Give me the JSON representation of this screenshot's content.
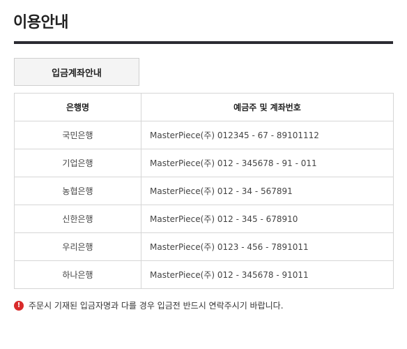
{
  "page": {
    "title": "이용안내"
  },
  "section": {
    "tab_label": "입금계좌안내"
  },
  "table": {
    "headers": [
      "은행명",
      "예금주 및 계좌번호"
    ],
    "rows": [
      {
        "bank": "국민은행",
        "account": "MasterPiece(주) 012345 - 67 - 89101112"
      },
      {
        "bank": "기업은행",
        "account": "MasterPiece(주) 012 - 345678 - 91 - 011"
      },
      {
        "bank": "농협은행",
        "account": "MasterPiece(주) 012 - 34 - 567891"
      },
      {
        "bank": "신한은행",
        "account": "MasterPiece(주) 012 - 345 - 678910"
      },
      {
        "bank": "우리은행",
        "account": "MasterPiece(주) 0123 - 456 - 7891011"
      },
      {
        "bank": "하나은행",
        "account": "MasterPiece(주) 012 - 345678 - 91011"
      }
    ]
  },
  "notice": {
    "icon": "alert-icon",
    "icon_glyph": "!",
    "icon_color": "#d92b2b",
    "text": "주문시 기재된 입금자명과 다를 경우 입금전 반드시 연락주시기 바랍니다."
  },
  "colors": {
    "title_rule": "#2b2b32",
    "tab_background": "#f4f4f4",
    "border": "#d6d6d6"
  }
}
